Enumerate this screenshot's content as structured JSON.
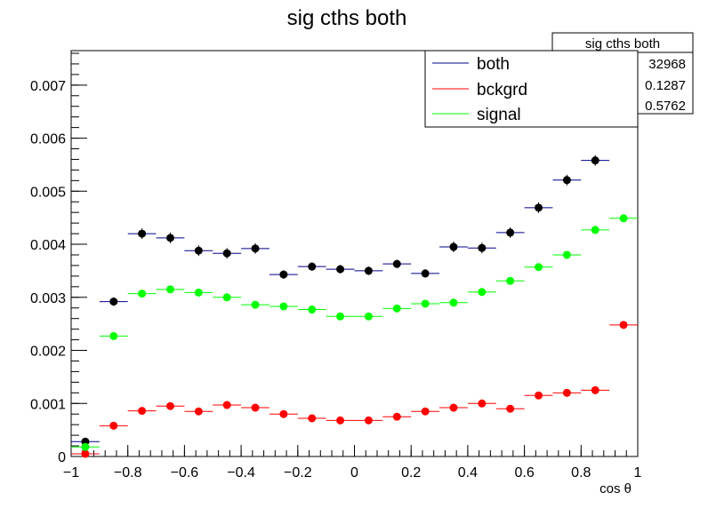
{
  "chart_data": {
    "type": "scatter",
    "title": "sig cths both",
    "xlabel": "cos  θ",
    "ylabel": "",
    "xlim": [
      -1,
      1
    ],
    "ylim": [
      0,
      0.00765
    ],
    "x_ticks": [
      -1,
      -0.8,
      -0.6,
      -0.4,
      -0.2,
      0,
      0.2,
      0.4,
      0.6,
      0.8,
      1
    ],
    "x_tick_labels": [
      "−1",
      "−0.8",
      "−0.6",
      "−0.4",
      "−0.2",
      "0",
      "0.2",
      "0.4",
      "0.6",
      "0.8",
      "1"
    ],
    "y_ticks": [
      0,
      0.001,
      0.002,
      0.003,
      0.004,
      0.005,
      0.006,
      0.007
    ],
    "y_tick_labels": [
      "0",
      "0.001",
      "0.002",
      "0.003",
      "0.004",
      "0.005",
      "0.006",
      "0.007"
    ],
    "bin_width": 0.1,
    "x": [
      -0.95,
      -0.85,
      -0.75,
      -0.65,
      -0.55,
      -0.45,
      -0.35,
      -0.25,
      -0.15,
      -0.05,
      0.05,
      0.15,
      0.25,
      0.35,
      0.45,
      0.55,
      0.65,
      0.75,
      0.85,
      0.95
    ],
    "series": [
      {
        "name": "both",
        "color": "#000000",
        "line_color": "#00008b",
        "values": [
          0.00028,
          0.00292,
          0.0042,
          0.00412,
          0.00388,
          0.00383,
          0.00392,
          0.00343,
          0.00358,
          0.00353,
          0.0035,
          0.00363,
          0.00345,
          0.00395,
          0.00393,
          0.00422,
          0.00469,
          0.00521,
          0.00558,
          null
        ],
        "errors": [
          5e-05,
          8e-05,
          0.0001,
          0.0001,
          0.0001,
          0.0001,
          0.0001,
          8e-05,
          8e-05,
          8e-05,
          8e-05,
          8e-05,
          8e-05,
          0.0001,
          0.0001,
          0.0001,
          0.0001,
          0.0001,
          0.0001,
          null
        ]
      },
      {
        "name": "bckgrd",
        "color": "#ff0000",
        "line_color": "#ff0000",
        "values": [
          5e-05,
          0.00058,
          0.00086,
          0.00095,
          0.00085,
          0.00097,
          0.00092,
          0.0008,
          0.00072,
          0.00068,
          0.00068,
          0.00075,
          0.00085,
          0.00092,
          0.001,
          0.0009,
          0.00115,
          0.0012,
          0.00125,
          0.00248
        ],
        "errors": [
          3e-05,
          4e-05,
          5e-05,
          5e-05,
          5e-05,
          5e-05,
          5e-05,
          5e-05,
          5e-05,
          5e-05,
          5e-05,
          5e-05,
          5e-05,
          5e-05,
          5e-05,
          5e-05,
          5e-05,
          5e-05,
          5e-05,
          5e-05
        ]
      },
      {
        "name": "signal",
        "color": "#00ff00",
        "line_color": "#00ff00",
        "values": [
          0.00018,
          0.00227,
          0.00307,
          0.00315,
          0.00309,
          0.003,
          0.00286,
          0.00283,
          0.00277,
          0.00264,
          0.00264,
          0.00279,
          0.00288,
          0.0029,
          0.0031,
          0.00331,
          0.00357,
          0.0038,
          0.00427,
          0.00449
        ],
        "errors": [
          3e-05,
          4e-05,
          4e-05,
          4e-05,
          4e-05,
          4e-05,
          4e-05,
          4e-05,
          4e-05,
          4e-05,
          4e-05,
          4e-05,
          4e-05,
          4e-05,
          4e-05,
          4e-05,
          4e-05,
          4e-05,
          4e-05,
          4e-05
        ]
      }
    ],
    "legend_position": "top-right",
    "grid": false
  },
  "stats_box": {
    "title": "sig cths both",
    "values": [
      "32968",
      "0.1287",
      "0.5762"
    ]
  },
  "colors": {
    "frame": "#000000",
    "background": "#ffffff"
  }
}
